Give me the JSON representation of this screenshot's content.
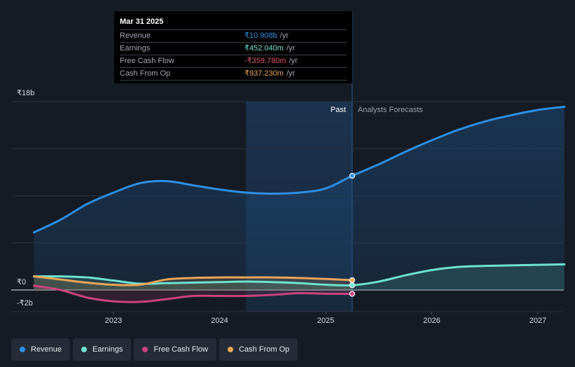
{
  "tooltip": {
    "date": "Mar 31 2025",
    "rows": [
      {
        "label": "Revenue",
        "value": "₹10.908b",
        "unit": "/yr",
        "color": "#2f8fe3"
      },
      {
        "label": "Earnings",
        "value": "₹452.040m",
        "unit": "/yr",
        "color": "#6ee3d0"
      },
      {
        "label": "Free Cash Flow",
        "value": "-₹359.780m",
        "unit": "/yr",
        "color": "#e05462"
      },
      {
        "label": "Cash From Op",
        "value": "₹937.230m",
        "unit": "/yr",
        "color": "#e9a55a"
      }
    ]
  },
  "labels": {
    "past": "Past",
    "forecast": "Analysts Forecasts"
  },
  "legend": [
    {
      "label": "Revenue",
      "color": "#2f8fe3"
    },
    {
      "label": "Earnings",
      "color": "#6ee3d0"
    },
    {
      "label": "Free Cash Flow",
      "color": "#c8437f"
    },
    {
      "label": "Cash From Op",
      "color": "#e9a55a"
    }
  ],
  "chart_data": {
    "type": "line",
    "title": "",
    "xlabel": "",
    "ylabel": "",
    "y_tick_labels": [
      "₹18b",
      "₹0",
      "-₹2b"
    ],
    "y_ticks": [
      18,
      0,
      -2
    ],
    "x_tick_labels": [
      "2023",
      "2024",
      "2025",
      "2026",
      "2027"
    ],
    "x_ticks": [
      2023,
      2024,
      2025,
      2026,
      2027
    ],
    "xlim": [
      2022.2,
      2027.25
    ],
    "ylim": [
      -2,
      18
    ],
    "highlight_range": [
      2024.25,
      2025.25
    ],
    "past_cutoff": 2025.25,
    "series": [
      {
        "name": "Revenue",
        "color": "#2f8fe3",
        "marker_x": 2025.25,
        "marker_y": 10.908,
        "x": [
          2022.25,
          2022.5,
          2022.75,
          2023.0,
          2023.25,
          2023.5,
          2023.75,
          2024.0,
          2024.25,
          2024.5,
          2024.75,
          2025.0,
          2025.25,
          2025.5,
          2025.75,
          2026.0,
          2026.25,
          2026.5,
          2026.75,
          2027.0,
          2027.25
        ],
        "y": [
          5.5,
          6.7,
          8.2,
          9.3,
          10.2,
          10.4,
          10.0,
          9.6,
          9.3,
          9.2,
          9.3,
          9.7,
          10.908,
          12.0,
          13.2,
          14.3,
          15.3,
          16.1,
          16.7,
          17.2,
          17.5
        ]
      },
      {
        "name": "Earnings",
        "color": "#6ee3d0",
        "marker_x": 2025.25,
        "marker_y": 0.452,
        "x": [
          2022.25,
          2022.5,
          2022.75,
          2023.0,
          2023.25,
          2023.5,
          2023.75,
          2024.0,
          2024.25,
          2024.5,
          2024.75,
          2025.0,
          2025.25,
          2025.5,
          2025.75,
          2026.0,
          2026.25,
          2026.5,
          2026.75,
          2027.0,
          2027.25
        ],
        "y": [
          1.3,
          1.3,
          1.2,
          0.9,
          0.6,
          0.65,
          0.7,
          0.75,
          0.8,
          0.75,
          0.65,
          0.5,
          0.452,
          0.8,
          1.4,
          1.9,
          2.2,
          2.3,
          2.35,
          2.4,
          2.45
        ]
      },
      {
        "name": "Free Cash Flow",
        "color": "#c8437f",
        "marker_x": 2025.25,
        "marker_y": -0.36,
        "x": [
          2022.25,
          2022.5,
          2022.75,
          2023.0,
          2023.25,
          2023.5,
          2023.75,
          2024.0,
          2024.25,
          2024.5,
          2024.75,
          2025.0,
          2025.25
        ],
        "y": [
          0.4,
          0.0,
          -0.7,
          -1.05,
          -1.1,
          -0.85,
          -0.55,
          -0.55,
          -0.55,
          -0.45,
          -0.3,
          -0.35,
          -0.36
        ]
      },
      {
        "name": "Cash From Op",
        "color": "#e9a55a",
        "marker_x": 2025.25,
        "marker_y": 0.937,
        "x": [
          2022.25,
          2022.5,
          2022.75,
          2023.0,
          2023.25,
          2023.5,
          2023.75,
          2024.0,
          2024.25,
          2024.5,
          2024.75,
          2025.0,
          2025.25
        ],
        "y": [
          1.3,
          1.0,
          0.7,
          0.5,
          0.5,
          1.0,
          1.15,
          1.2,
          1.2,
          1.2,
          1.15,
          1.05,
          0.937
        ]
      }
    ]
  }
}
